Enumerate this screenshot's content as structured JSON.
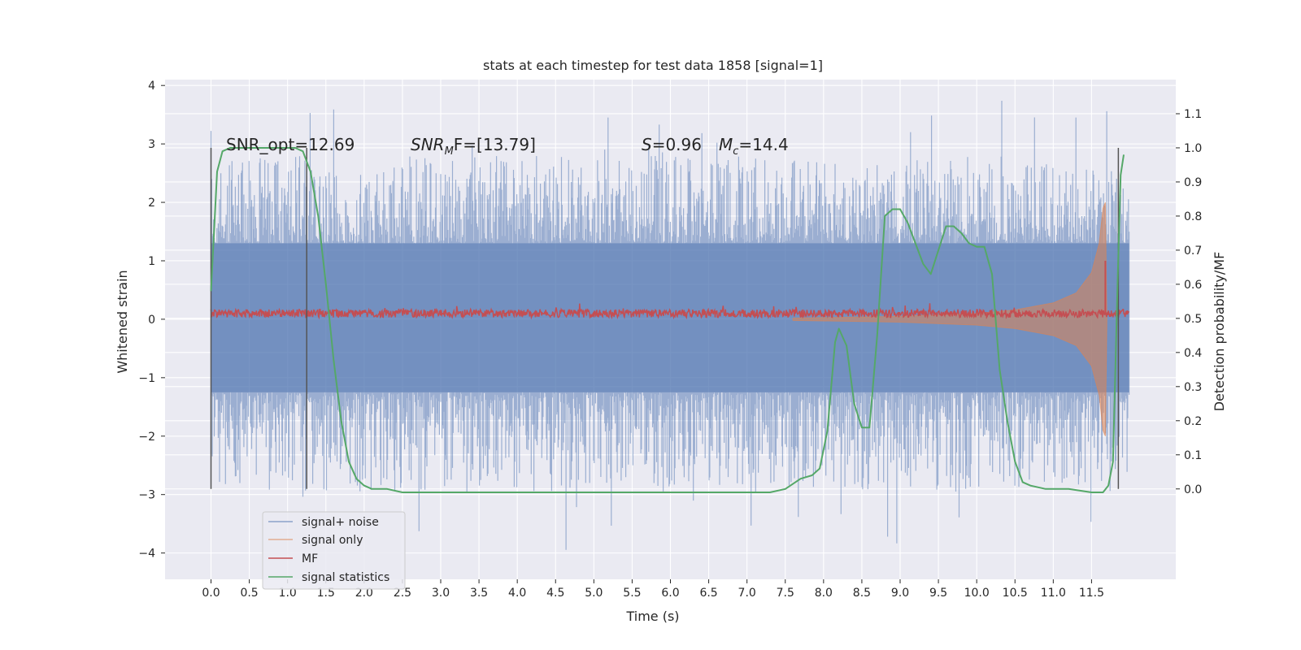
{
  "chart_data": {
    "type": "line",
    "title": "stats at each timestep for test data 1858 [signal=1]",
    "xlabel": "Time (s)",
    "ylabel": "Whitened strain",
    "y2label": "Detection probability/MF",
    "xlim": [
      -0.6,
      12.6
    ],
    "ylim": [
      -4.45,
      4.1
    ],
    "y2lim": [
      -0.265,
      1.2
    ],
    "x_ticks": [
      0.0,
      0.5,
      1.0,
      1.5,
      2.0,
      2.5,
      3.0,
      3.5,
      4.0,
      4.5,
      5.0,
      5.5,
      6.0,
      6.5,
      7.0,
      7.5,
      8.0,
      8.5,
      9.0,
      9.5,
      10.0,
      10.5,
      11.0,
      11.5
    ],
    "x_tick_labels": [
      "0.0",
      "0.5",
      "1.0",
      "1.5",
      "2.0",
      "2.5",
      "3.0",
      "3.5",
      "4.0",
      "4.5",
      "5.0",
      "5.5",
      "6.0",
      "6.5",
      "7.0",
      "7.5",
      "8.0",
      "8.5",
      "9.0",
      "9.5",
      "10.0",
      "10.5",
      "11.0",
      "11.5"
    ],
    "y_ticks": [
      -4,
      -3,
      -2,
      -1,
      0,
      1,
      2,
      3,
      4
    ],
    "y_tick_labels": [
      "−4",
      "−3",
      "−2",
      "−1",
      "0",
      "1",
      "2",
      "3",
      "4"
    ],
    "y2_ticks": [
      0.0,
      0.1,
      0.2,
      0.3,
      0.4,
      0.5,
      0.6,
      0.7,
      0.8,
      0.9,
      1.0,
      1.1
    ],
    "y2_tick_labels": [
      "0.0",
      "0.1",
      "0.2",
      "0.3",
      "0.4",
      "0.5",
      "0.6",
      "0.7",
      "0.8",
      "0.9",
      "1.0",
      "1.1"
    ],
    "grid": true,
    "legend_position": "lower-left",
    "annotations": {
      "snr_opt": "SNR_opt=12.69",
      "snr_mf_label": "SNR",
      "snr_mf_sub": "M",
      "snr_mf_value": "F=[13.79]",
      "s_label": "S",
      "s_value": "=0.96",
      "mc_label": "M",
      "mc_sub": "c",
      "mc_value": "=14.4"
    },
    "vertical_markers": [
      0.0,
      1.25,
      11.85
    ],
    "series": [
      {
        "name": "signal+ noise",
        "color": "#4c72b0",
        "kind": "noise_band",
        "x_range": [
          0.0,
          11.99
        ],
        "core_range": [
          -1.25,
          1.3
        ],
        "spike_range": [
          -4.05,
          3.75
        ]
      },
      {
        "name": "signal only",
        "color": "#dd8452",
        "kind": "chirp",
        "x_range": [
          7.6,
          11.7
        ],
        "envelope_points": [
          [
            7.6,
            0.02
          ],
          [
            9.0,
            0.05
          ],
          [
            10.0,
            0.1
          ],
          [
            10.5,
            0.16
          ],
          [
            11.0,
            0.28
          ],
          [
            11.3,
            0.45
          ],
          [
            11.5,
            0.8
          ],
          [
            11.6,
            1.3
          ],
          [
            11.65,
            1.9
          ],
          [
            11.68,
            2.0
          ],
          [
            11.7,
            0.0
          ]
        ]
      },
      {
        "name": "MF",
        "color": "#c44e52",
        "kind": "noisy_line",
        "x_range": [
          0.0,
          11.99
        ],
        "mean": 0.1,
        "amplitude": 0.07,
        "spike": {
          "x": 11.68,
          "value": 1.0
        }
      },
      {
        "name": "signal statistics",
        "color": "#55a868",
        "kind": "line_secondary",
        "x": [
          0.0,
          0.08,
          0.15,
          0.25,
          0.4,
          0.6,
          0.8,
          1.0,
          1.1,
          1.2,
          1.3,
          1.4,
          1.5,
          1.6,
          1.7,
          1.8,
          1.9,
          2.0,
          2.1,
          2.3,
          2.5,
          2.7,
          3.0,
          3.3,
          3.6,
          3.9,
          4.2,
          4.6,
          5.0,
          5.5,
          6.0,
          6.5,
          7.0,
          7.3,
          7.5,
          7.7,
          7.85,
          7.95,
          8.05,
          8.15,
          8.2,
          8.3,
          8.4,
          8.5,
          8.6,
          8.7,
          8.8,
          8.9,
          9.0,
          9.1,
          9.2,
          9.3,
          9.4,
          9.5,
          9.6,
          9.7,
          9.8,
          9.9,
          10.0,
          10.1,
          10.2,
          10.3,
          10.4,
          10.5,
          10.6,
          10.7,
          10.9,
          11.2,
          11.5,
          11.65,
          11.72,
          11.78,
          11.84,
          11.88,
          11.92
        ],
        "y": [
          0.58,
          0.93,
          0.99,
          1.0,
          1.0,
          1.0,
          1.0,
          1.0,
          1.0,
          0.99,
          0.93,
          0.8,
          0.6,
          0.38,
          0.2,
          0.08,
          0.03,
          0.01,
          0.0,
          0.0,
          -0.01,
          -0.01,
          -0.01,
          -0.01,
          -0.01,
          -0.01,
          -0.01,
          -0.01,
          -0.01,
          -0.01,
          -0.01,
          -0.01,
          -0.01,
          -0.01,
          0.0,
          0.03,
          0.04,
          0.06,
          0.17,
          0.43,
          0.47,
          0.42,
          0.25,
          0.18,
          0.18,
          0.45,
          0.8,
          0.82,
          0.82,
          0.78,
          0.72,
          0.66,
          0.63,
          0.7,
          0.77,
          0.77,
          0.75,
          0.72,
          0.71,
          0.71,
          0.63,
          0.35,
          0.2,
          0.08,
          0.02,
          0.01,
          0.0,
          0.0,
          -0.01,
          -0.01,
          0.01,
          0.08,
          0.6,
          0.92,
          0.98
        ]
      }
    ]
  }
}
